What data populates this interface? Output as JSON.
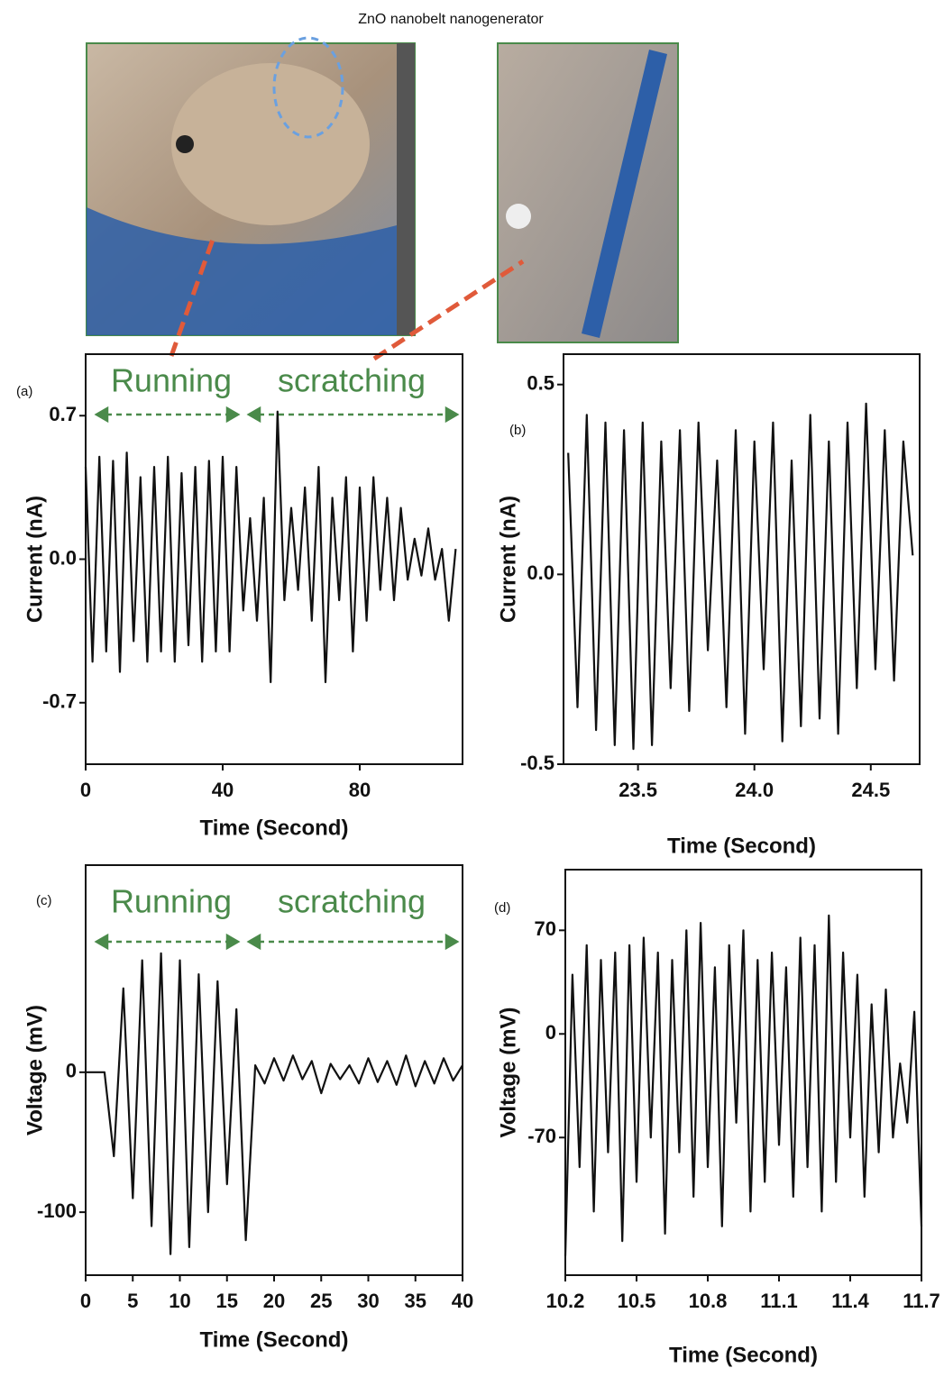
{
  "caption": "ZnO nanobelt nanogenerator",
  "chart_data": [
    {
      "type": "line",
      "panel_label": "(a)",
      "annotations": [
        "Running",
        "scratching"
      ],
      "x_label": "Time (Second)",
      "y_label": "Current (nA)",
      "color": "#111111",
      "xlim": [
        0,
        110
      ],
      "ylim": [
        -1,
        1
      ],
      "xticks": [
        0,
        40,
        80
      ],
      "yticks": [
        -0.7,
        {
          "value": 0,
          "label": "0.0"
        },
        0.7
      ],
      "x": [
        0,
        2,
        4,
        6,
        8,
        10,
        12,
        14,
        16,
        18,
        20,
        22,
        24,
        26,
        28,
        30,
        32,
        34,
        36,
        38,
        40,
        42,
        44,
        46,
        48,
        50,
        52,
        54,
        56,
        58,
        60,
        62,
        64,
        66,
        68,
        70,
        72,
        74,
        76,
        78,
        80,
        82,
        84,
        86,
        88,
        90,
        92,
        94,
        96,
        98,
        100,
        102,
        104,
        106,
        108
      ],
      "values": [
        0.45,
        -0.5,
        0.5,
        -0.45,
        0.48,
        -0.55,
        0.52,
        -0.4,
        0.4,
        -0.5,
        0.45,
        -0.45,
        0.5,
        -0.5,
        0.42,
        -0.42,
        0.45,
        -0.5,
        0.48,
        -0.45,
        0.5,
        -0.45,
        0.45,
        -0.25,
        0.2,
        -0.3,
        0.3,
        -0.6,
        0.72,
        -0.2,
        0.25,
        -0.15,
        0.35,
        -0.3,
        0.45,
        -0.6,
        0.3,
        -0.2,
        0.4,
        -0.45,
        0.35,
        -0.3,
        0.4,
        -0.15,
        0.3,
        -0.2,
        0.25,
        -0.1,
        0.1,
        -0.08,
        0.15,
        -0.1,
        0.05,
        -0.3,
        0.05
      ]
    },
    {
      "type": "line",
      "panel_label": "(b)",
      "x_label": "Time (Second)",
      "y_label": "Current (nA)",
      "color": "#111111",
      "xlim": [
        23.18,
        24.71
      ],
      "ylim": [
        -0.5,
        0.58
      ],
      "xticks": [
        23.5,
        {
          "value": 24,
          "label": "24.0"
        },
        24.5
      ],
      "yticks": [
        -0.5,
        {
          "value": 0,
          "label": "0.0"
        },
        0.5
      ],
      "x": [
        23.2,
        23.24,
        23.28,
        23.32,
        23.36,
        23.4,
        23.44,
        23.48,
        23.52,
        23.56,
        23.6,
        23.64,
        23.68,
        23.72,
        23.76,
        23.8,
        23.84,
        23.88,
        23.92,
        23.96,
        24.0,
        24.04,
        24.08,
        24.12,
        24.16,
        24.2,
        24.24,
        24.28,
        24.32,
        24.36,
        24.4,
        24.44,
        24.48,
        24.52,
        24.56,
        24.6,
        24.64,
        24.68
      ],
      "values": [
        0.32,
        -0.35,
        0.42,
        -0.41,
        0.4,
        -0.45,
        0.38,
        -0.46,
        0.4,
        -0.45,
        0.35,
        -0.3,
        0.38,
        -0.36,
        0.4,
        -0.2,
        0.3,
        -0.35,
        0.38,
        -0.42,
        0.35,
        -0.25,
        0.4,
        -0.44,
        0.3,
        -0.4,
        0.42,
        -0.38,
        0.35,
        -0.42,
        0.4,
        -0.3,
        0.45,
        -0.25,
        0.38,
        -0.28,
        0.35,
        0.05
      ]
    },
    {
      "type": "line",
      "panel_label": "(c)",
      "annotations": [
        "Running",
        "scratching"
      ],
      "x_label": "Time (Second)",
      "y_label": "Voltage (mV)",
      "color": "#111111",
      "xlim": [
        0,
        40
      ],
      "ylim": [
        -145,
        148
      ],
      "xticks": [
        0,
        5,
        10,
        15,
        20,
        25,
        30,
        35,
        40
      ],
      "yticks": [
        -100,
        0
      ],
      "x": [
        0,
        1,
        2,
        3,
        4,
        5,
        6,
        7,
        8,
        9,
        10,
        11,
        12,
        13,
        14,
        15,
        16,
        17,
        18,
        19,
        20,
        21,
        22,
        23,
        24,
        25,
        26,
        27,
        28,
        29,
        30,
        31,
        32,
        33,
        34,
        35,
        36,
        37,
        38,
        39,
        40
      ],
      "values": [
        0,
        0,
        0,
        -60,
        60,
        -90,
        80,
        -110,
        85,
        -130,
        80,
        -125,
        70,
        -100,
        65,
        -80,
        45,
        -120,
        5,
        -8,
        10,
        -6,
        12,
        -5,
        8,
        -15,
        6,
        -5,
        5,
        -8,
        10,
        -7,
        8,
        -9,
        12,
        -10,
        8,
        -8,
        10,
        -6,
        5
      ]
    },
    {
      "type": "line",
      "panel_label": "(d)",
      "x_label": "Time (Second)",
      "y_label": "Voltage (mV)",
      "color": "#111111",
      "xlim": [
        10.2,
        11.7
      ],
      "ylim": [
        -163,
        111
      ],
      "xticks": [
        10.2,
        10.5,
        10.8,
        11.1,
        11.4,
        11.7
      ],
      "yticks": [
        -70,
        0,
        70
      ],
      "x": [
        10.2,
        10.23,
        10.26,
        10.29,
        10.32,
        10.35,
        10.38,
        10.41,
        10.44,
        10.47,
        10.5,
        10.53,
        10.56,
        10.59,
        10.62,
        10.65,
        10.68,
        10.71,
        10.74,
        10.77,
        10.8,
        10.83,
        10.86,
        10.89,
        10.92,
        10.95,
        10.98,
        11.01,
        11.04,
        11.07,
        11.1,
        11.13,
        11.16,
        11.19,
        11.22,
        11.25,
        11.28,
        11.31,
        11.34,
        11.37,
        11.4,
        11.43,
        11.46,
        11.49,
        11.52,
        11.55,
        11.58,
        11.61,
        11.64,
        11.67,
        11.7
      ],
      "values": [
        -150,
        40,
        -90,
        60,
        -120,
        50,
        -80,
        55,
        -140,
        60,
        -100,
        65,
        -70,
        55,
        -135,
        50,
        -80,
        70,
        -110,
        75,
        -90,
        45,
        -130,
        60,
        -60,
        70,
        -120,
        50,
        -100,
        55,
        -75,
        45,
        -110,
        65,
        -90,
        60,
        -120,
        80,
        -100,
        55,
        -70,
        40,
        -110,
        20,
        -80,
        30,
        -70,
        -20,
        -60,
        15,
        -130
      ]
    }
  ]
}
